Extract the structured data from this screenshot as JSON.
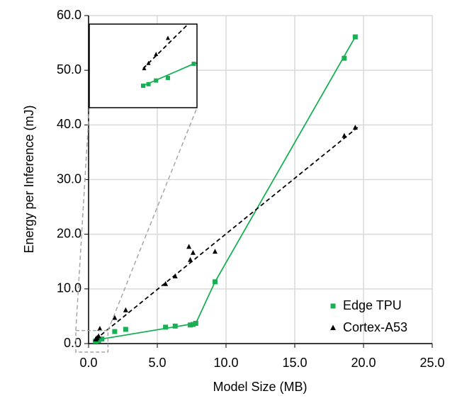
{
  "chart_data": {
    "type": "scatter",
    "xlabel": "Model Size (MB)",
    "ylabel": "Energy per Inference (mJ)",
    "xlim": [
      0,
      25
    ],
    "ylim": [
      0,
      60
    ],
    "xticks": [
      {
        "value": 0,
        "label": "0.0"
      },
      {
        "value": 5,
        "label": "5.0"
      },
      {
        "value": 10,
        "label": "10.0"
      },
      {
        "value": 15,
        "label": "15.0"
      },
      {
        "value": 20,
        "label": "20.0"
      },
      {
        "value": 25,
        "label": "25.0"
      }
    ],
    "yticks": [
      {
        "value": 0,
        "label": "0.0"
      },
      {
        "value": 10,
        "label": "10.0"
      },
      {
        "value": 20,
        "label": "20.0"
      },
      {
        "value": 30,
        "label": "30.0"
      },
      {
        "value": 40,
        "label": "40.0"
      },
      {
        "value": 50,
        "label": "50.0"
      },
      {
        "value": 60,
        "label": "60.0"
      }
    ],
    "grid": true,
    "legend": "lower right",
    "series": [
      {
        "name": "Edge TPU",
        "color": "#1aaf54",
        "marker": "square",
        "line": "solid",
        "x": [
          0.5,
          0.55,
          0.62,
          0.73,
          0.97,
          1.9,
          2.7,
          5.6,
          6.3,
          7.4,
          7.6,
          7.8,
          9.2,
          18.6,
          19.4
        ],
        "values": [
          0.42,
          0.45,
          0.52,
          0.57,
          0.84,
          2.2,
          2.6,
          3.0,
          3.2,
          3.4,
          3.5,
          3.7,
          11.3,
          52.2,
          56.1
        ],
        "fit_x": [
          0.5,
          0.97,
          7.8,
          9.2,
          19.4
        ],
        "fit_y": [
          0.42,
          0.84,
          3.7,
          11.3,
          56.1
        ]
      },
      {
        "name": "Cortex-A53",
        "color": "#000000",
        "marker": "triangle",
        "line": "dashed",
        "x": [
          0.51,
          0.55,
          0.62,
          0.73,
          0.82,
          1.9,
          2.7,
          5.6,
          6.3,
          7.3,
          7.4,
          7.6,
          9.2,
          18.6,
          19.4
        ],
        "values": [
          0.75,
          0.85,
          1.02,
          1.33,
          2.7,
          4.7,
          6.1,
          10.9,
          12.3,
          17.7,
          15.3,
          16.6,
          16.8,
          38.0,
          39.5
        ],
        "fit_x": [
          0.5,
          19.6
        ],
        "fit_y": [
          0.75,
          39.6
        ]
      }
    ],
    "inset": {
      "xlim": [
        0,
        1
      ],
      "ylim": [
        0,
        1.6
      ]
    }
  }
}
